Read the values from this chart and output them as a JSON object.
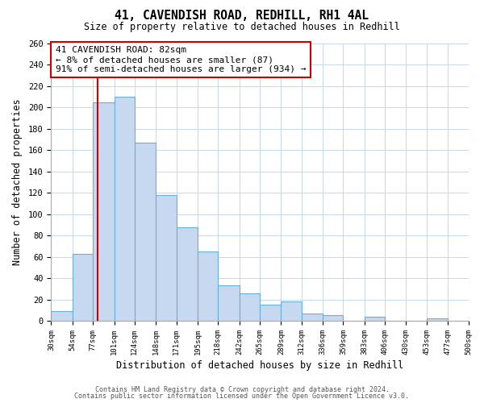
{
  "title": "41, CAVENDISH ROAD, REDHILL, RH1 4AL",
  "subtitle": "Size of property relative to detached houses in Redhill",
  "xlabel": "Distribution of detached houses by size in Redhill",
  "ylabel": "Number of detached properties",
  "bin_labels": [
    "30sqm",
    "54sqm",
    "77sqm",
    "101sqm",
    "124sqm",
    "148sqm",
    "171sqm",
    "195sqm",
    "218sqm",
    "242sqm",
    "265sqm",
    "289sqm",
    "312sqm",
    "336sqm",
    "359sqm",
    "383sqm",
    "406sqm",
    "430sqm",
    "453sqm",
    "477sqm",
    "500sqm"
  ],
  "bar_values": [
    9,
    63,
    205,
    210,
    167,
    118,
    88,
    65,
    33,
    26,
    15,
    18,
    7,
    5,
    0,
    4,
    0,
    0,
    2,
    0,
    0
  ],
  "bar_color": "#c6d9f0",
  "bar_edge_color": "#6baed6",
  "property_line_x": 82,
  "bin_edges": [
    30,
    54,
    77,
    101,
    124,
    148,
    171,
    195,
    218,
    242,
    265,
    289,
    312,
    336,
    359,
    383,
    406,
    430,
    453,
    477,
    500
  ],
  "ylim": [
    0,
    260
  ],
  "annotation_title": "41 CAVENDISH ROAD: 82sqm",
  "annotation_line1": "← 8% of detached houses are smaller (87)",
  "annotation_line2": "91% of semi-detached houses are larger (934) →",
  "annotation_box_color": "#ffffff",
  "annotation_box_edge": "#cc0000",
  "line_color": "#cc0000",
  "footer1": "Contains HM Land Registry data © Crown copyright and database right 2024.",
  "footer2": "Contains public sector information licensed under the Open Government Licence v3.0.",
  "background_color": "#ffffff",
  "grid_color": "#c8d8e8"
}
